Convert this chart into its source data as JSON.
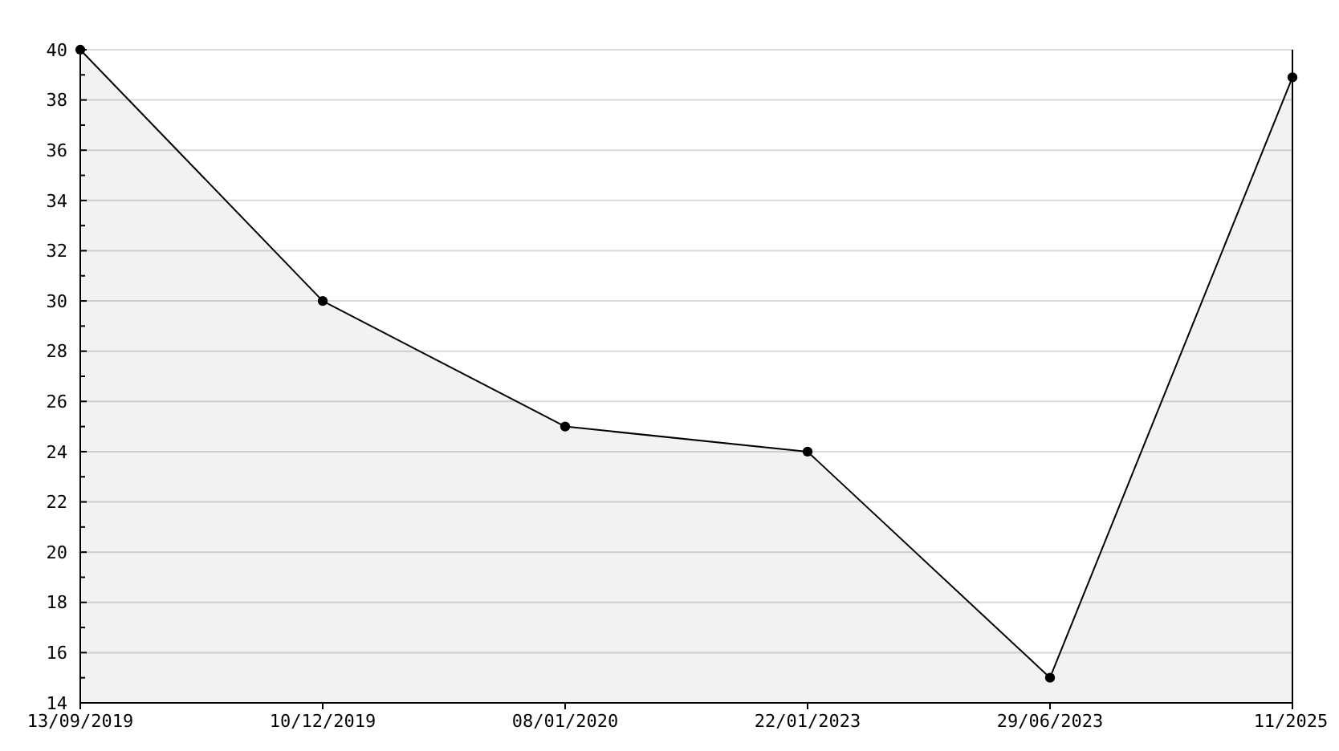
{
  "chart_data": {
    "type": "area",
    "categories": [
      "13/09/2019",
      "10/12/2019",
      "08/01/2020",
      "22/01/2023",
      "29/06/2023",
      "11/2025"
    ],
    "series": [
      {
        "color": "#000000",
        "values": [
          40,
          30,
          25,
          24,
          15,
          38.9
        ]
      }
    ],
    "ylim": [
      14,
      40
    ],
    "yticks": [
      14,
      {
        "value": 15,
        "label": null
      },
      16,
      {
        "value": 17,
        "label": null
      },
      18,
      {
        "value": 19,
        "label": null
      },
      20,
      {
        "value": 21,
        "label": null
      },
      22,
      {
        "value": 23,
        "label": null
      },
      24,
      {
        "value": 25,
        "label": null
      },
      26,
      {
        "value": 27,
        "label": null
      },
      28,
      {
        "value": 29,
        "label": null
      },
      30,
      {
        "value": 31,
        "label": null
      },
      32,
      {
        "value": 33,
        "label": null
      },
      34,
      {
        "value": 35,
        "label": null
      },
      36,
      {
        "value": 37,
        "label": null
      },
      38,
      {
        "value": 39,
        "label": null
      },
      40
    ],
    "grid": "y",
    "marker": "circle",
    "line_style": "solid"
  }
}
